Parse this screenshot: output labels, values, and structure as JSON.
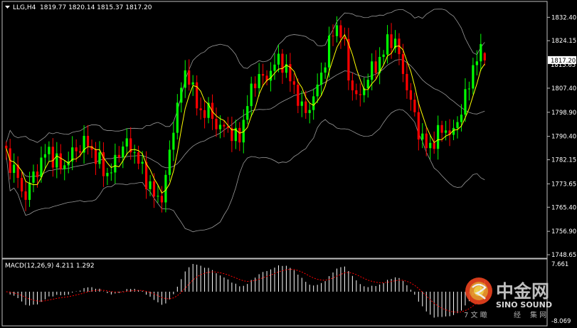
{
  "header": {
    "symbol": "LLG,H4",
    "ohlc": "1819.77 1820.14 1815.37 1817.20"
  },
  "macd_header": {
    "label": "MACD(12,26,9) 4.211 1.292"
  },
  "colors": {
    "background": "#000000",
    "bull": "#00ff00",
    "bear": "#ff0000",
    "ma_fast": "#ffff00",
    "bands": "#9a9a9a",
    "macd_hist": "#ffffff",
    "macd_signal": "#ff0000",
    "price_tag_bg": "#ffffff"
  },
  "chart_data": [
    {
      "type": "candlestick",
      "title": "",
      "timeframe": "H4",
      "ylim": [
        1748.65,
        1836.5
      ],
      "y_ticks": [
        "1832.40",
        "1824.15",
        "1807.40",
        "1798.90",
        "1790.40",
        "1782.15",
        "1773.65",
        "1765.40",
        "1756.90",
        "1748.65"
      ],
      "current_price_label": "1817.20",
      "overlapped_tick_label": "1815.65",
      "last_candle": {
        "open": 1819.77,
        "high": 1820.14,
        "low": 1815.37,
        "close": 1817.2
      },
      "indicators": [
        "Bollinger Bands",
        "Moving Average"
      ],
      "grid": false
    },
    {
      "type": "bar",
      "title": "MACD(12,26,9)",
      "main": 4.211,
      "signal": 1.292,
      "ylim": [
        -8.069,
        7.661
      ],
      "y_ticks": [
        "7.661",
        "-8.069"
      ]
    }
  ],
  "watermark": {
    "cn_name": "中金网",
    "en_name": "SINO SOUND",
    "slogan_left": "7 文 瞰",
    "slogan_mid": "经",
    "slogan_right": "集 网"
  }
}
